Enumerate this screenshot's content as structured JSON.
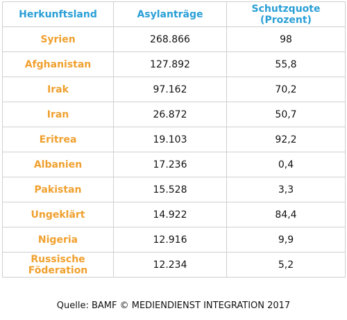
{
  "table": {
    "headers": [
      "Herkunftsland",
      "Asylanträge",
      "Schutzquote (Prozent)"
    ],
    "rows": [
      {
        "country": "Syrien",
        "applications": "268.866",
        "protection_rate": "98"
      },
      {
        "country": "Afghanistan",
        "applications": "127.892",
        "protection_rate": "55,8"
      },
      {
        "country": "Irak",
        "applications": "97.162",
        "protection_rate": "70,2"
      },
      {
        "country": "Iran",
        "applications": "26.872",
        "protection_rate": "50,7"
      },
      {
        "country": "Eritrea",
        "applications": "19.103",
        "protection_rate": "92,2"
      },
      {
        "country": "Albanien",
        "applications": "17.236",
        "protection_rate": "0,4"
      },
      {
        "country": "Pakistan",
        "applications": "15.528",
        "protection_rate": "3,3"
      },
      {
        "country": "Ungeklärt",
        "applications": "14.922",
        "protection_rate": "84,4"
      },
      {
        "country": "Nigeria",
        "applications": "12.916",
        "protection_rate": "9,9"
      },
      {
        "country": "Russische Föderation",
        "applications": "12.234",
        "protection_rate": "5,2"
      }
    ]
  },
  "source": "Quelle: BAMF © MEDIENDIENST INTEGRATION 2017",
  "colors": {
    "header_text": "#2a9fd6",
    "country_text": "#f0a02e",
    "border": "#cfcfcf"
  }
}
